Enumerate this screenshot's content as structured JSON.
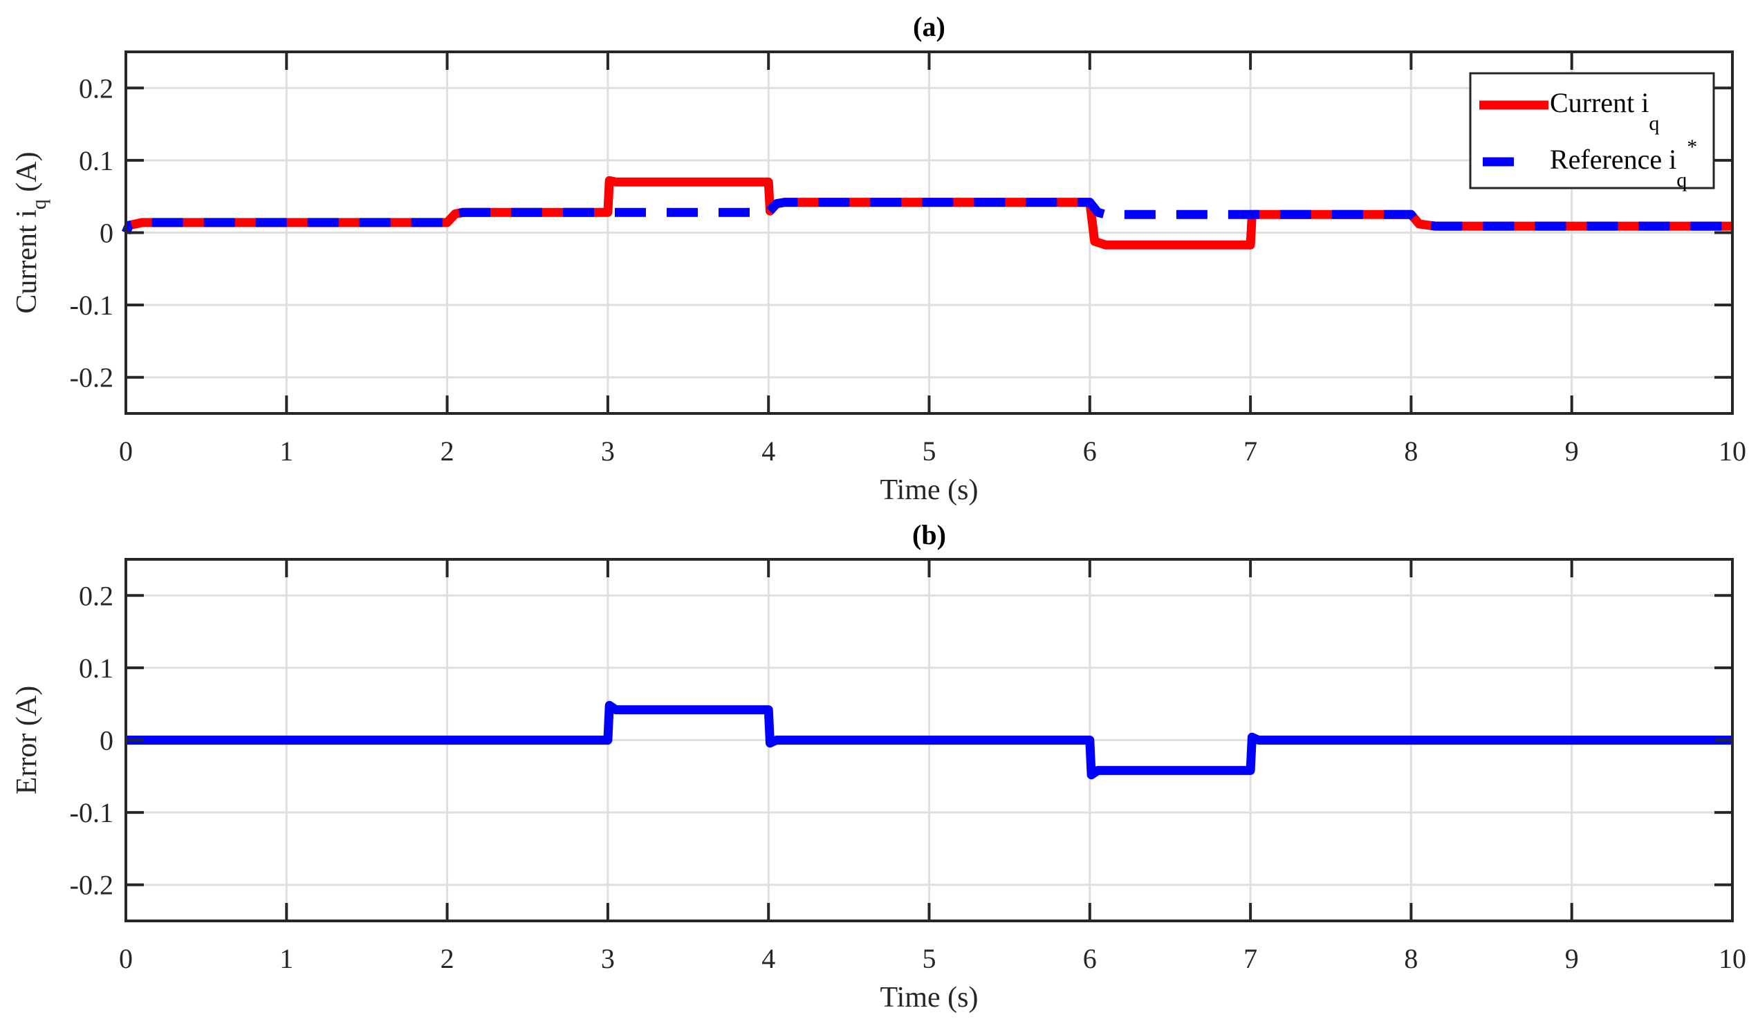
{
  "chart_data": [
    {
      "type": "line",
      "panel": "a",
      "title": "(a)",
      "xlabel": "Time (s)",
      "ylabel": "Current i_q (A)",
      "ylabel_main": "Current i",
      "ylabel_sub": "q",
      "ylabel_unit": " (A)",
      "xlim": [
        0,
        10
      ],
      "ylim": [
        -0.25,
        0.25
      ],
      "xticks": [
        "0",
        "1",
        "2",
        "3",
        "4",
        "5",
        "6",
        "7",
        "8",
        "9",
        "10"
      ],
      "yticks": [
        "0.2",
        "0.1",
        "0",
        "-0.1",
        "-0.2"
      ],
      "ytick_values": [
        0.2,
        0.1,
        0,
        -0.1,
        -0.2
      ],
      "grid": true,
      "legend": {
        "position": "top-right",
        "entries": [
          {
            "label": "Current i_q",
            "main": "Current i",
            "sub": "q",
            "sup": "",
            "color": "#ff0000",
            "style": "solid"
          },
          {
            "label": "Reference i_q*",
            "main": "Reference i",
            "sub": "q",
            "sup": "*",
            "color": "#0000ff",
            "style": "dashed"
          }
        ]
      },
      "series": [
        {
          "name": "Current i_q",
          "color": "#ff0000",
          "style": "solid",
          "x": [
            0,
            0.02,
            0.1,
            2.0,
            2.05,
            2.1,
            3.0,
            3.01,
            3.05,
            4.0,
            4.01,
            4.05,
            4.1,
            6.0,
            6.03,
            6.1,
            7.0,
            7.01,
            7.05,
            8.0,
            8.05,
            8.15,
            10.0
          ],
          "y": [
            0.0,
            0.01,
            0.014,
            0.014,
            0.026,
            0.028,
            0.028,
            0.072,
            0.07,
            0.07,
            0.03,
            0.04,
            0.042,
            0.042,
            -0.012,
            -0.017,
            -0.017,
            0.025,
            0.025,
            0.025,
            0.012,
            0.009,
            0.009
          ]
        },
        {
          "name": "Reference i_q*",
          "color": "#0000ff",
          "style": "dashed",
          "x": [
            0,
            0.02,
            0.1,
            2.0,
            2.05,
            2.1,
            4.0,
            4.05,
            4.1,
            6.0,
            6.05,
            6.1,
            8.0,
            8.05,
            8.15,
            10.0
          ],
          "y": [
            0.0,
            0.01,
            0.014,
            0.014,
            0.026,
            0.028,
            0.028,
            0.04,
            0.042,
            0.042,
            0.028,
            0.025,
            0.025,
            0.012,
            0.009,
            0.009
          ]
        }
      ]
    },
    {
      "type": "line",
      "panel": "b",
      "title": "(b)",
      "xlabel": "Time (s)",
      "ylabel": "Error (A)",
      "xlim": [
        0,
        10
      ],
      "ylim": [
        -0.25,
        0.25
      ],
      "xticks": [
        "0",
        "1",
        "2",
        "3",
        "4",
        "5",
        "6",
        "7",
        "8",
        "9",
        "10"
      ],
      "yticks": [
        "0.2",
        "0.1",
        "0",
        "-0.1",
        "-0.2"
      ],
      "ytick_values": [
        0.2,
        0.1,
        0,
        -0.1,
        -0.2
      ],
      "grid": true,
      "series": [
        {
          "name": "Error",
          "color": "#0000ff",
          "style": "solid",
          "x": [
            0,
            3.0,
            3.01,
            3.05,
            4.0,
            4.01,
            4.05,
            6.0,
            6.01,
            6.05,
            7.0,
            7.01,
            7.05,
            10.0
          ],
          "y": [
            0,
            0,
            0.048,
            0.042,
            0.042,
            -0.004,
            0,
            0,
            -0.048,
            -0.042,
            -0.042,
            0.004,
            0,
            0
          ]
        }
      ]
    }
  ]
}
